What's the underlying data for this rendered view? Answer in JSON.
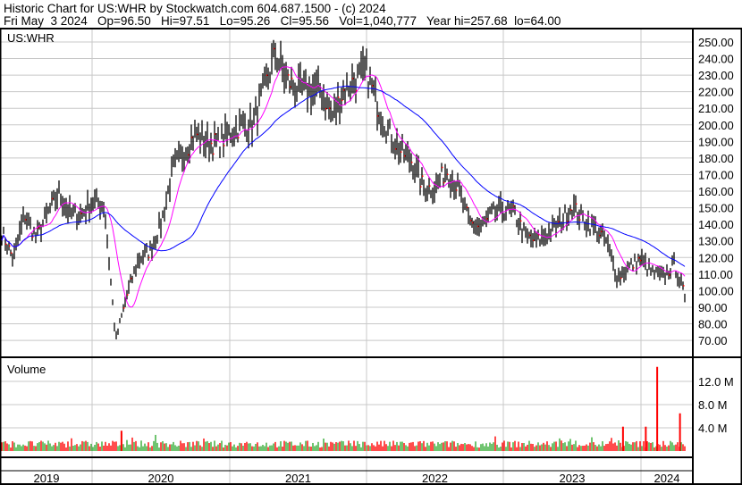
{
  "header": {
    "title": "Historic Chart for US:WHR by Stockwatch.com 604.687.1500 - (c) 2024",
    "quote": "Fri May  3 2024   Op=96.50   Hi=97.51   Lo=95.26   Cl=95.56   Vol=1,040,777   Year hi=257.68  lo=64.00"
  },
  "chart_data": {
    "type": "line",
    "symbol_label": "US:WHR",
    "volume_label": "Volume",
    "price_axis": {
      "ylim": [
        60,
        257
      ],
      "ticks": [
        "250.00",
        "240.00",
        "230.00",
        "220.00",
        "210.00",
        "200.00",
        "190.00",
        "180.00",
        "170.00",
        "160.00",
        "150.00",
        "140.00",
        "130.00",
        "120.00",
        "110.00",
        "100.00",
        "90.00",
        "80.00",
        "70.00"
      ]
    },
    "volume_axis": {
      "unit": "M",
      "ticks": [
        "12.0 M",
        "8.0 M",
        "4.0 M"
      ]
    },
    "x_axis": {
      "years": [
        "2019",
        "2020",
        "2021",
        "2022",
        "2023",
        "2024"
      ]
    },
    "grid": true,
    "colors": {
      "price_bar": "#000000",
      "close_tick": "#ff0000",
      "ma_short": "#ff00ff",
      "ma_long": "#0000ff",
      "volume_up": "#33aa33",
      "volume_down": "#ff0000"
    },
    "monthly_price": {
      "months": [
        "2019-05",
        "2019-06",
        "2019-07",
        "2019-08",
        "2019-09",
        "2019-10",
        "2019-11",
        "2019-12",
        "2020-01",
        "2020-02",
        "2020-03",
        "2020-04",
        "2020-05",
        "2020-06",
        "2020-07",
        "2020-08",
        "2020-09",
        "2020-10",
        "2020-11",
        "2020-12",
        "2021-01",
        "2021-02",
        "2021-03",
        "2021-04",
        "2021-05",
        "2021-06",
        "2021-07",
        "2021-08",
        "2021-09",
        "2021-10",
        "2021-11",
        "2021-12",
        "2022-01",
        "2022-02",
        "2022-03",
        "2022-04",
        "2022-05",
        "2022-06",
        "2022-07",
        "2022-08",
        "2022-09",
        "2022-10",
        "2022-11",
        "2022-12",
        "2023-01",
        "2023-02",
        "2023-03",
        "2023-04",
        "2023-05",
        "2023-06",
        "2023-07",
        "2023-08",
        "2023-09",
        "2023-10",
        "2023-11",
        "2023-12",
        "2024-01",
        "2024-02",
        "2024-03",
        "2024-04",
        "2024-05"
      ],
      "close": [
        135,
        119,
        146,
        132,
        146,
        159,
        146,
        146,
        154,
        151,
        70,
        98,
        119,
        124,
        141,
        173,
        184,
        195,
        189,
        189,
        195,
        200,
        200,
        221,
        243,
        227,
        221,
        221,
        221,
        205,
        221,
        227,
        232,
        211,
        195,
        184,
        178,
        162,
        162,
        173,
        162,
        141,
        138,
        146,
        149,
        146,
        132,
        130,
        135,
        141,
        151,
        143,
        138,
        130,
        108,
        114,
        119,
        111,
        108,
        116,
        95.56
      ]
    },
    "volume_spikes": [
      {
        "month": "2020-03",
        "value_m": 3.5
      },
      {
        "month": "2023-11",
        "value_m": 4.2
      },
      {
        "month": "2024-01",
        "value_m": 4.2
      },
      {
        "month": "2024-02",
        "value_m": 14.5
      },
      {
        "month": "2024-04",
        "value_m": 6.5
      }
    ],
    "moving_averages": [
      "short-term (magenta)",
      "long-term (blue)"
    ]
  }
}
